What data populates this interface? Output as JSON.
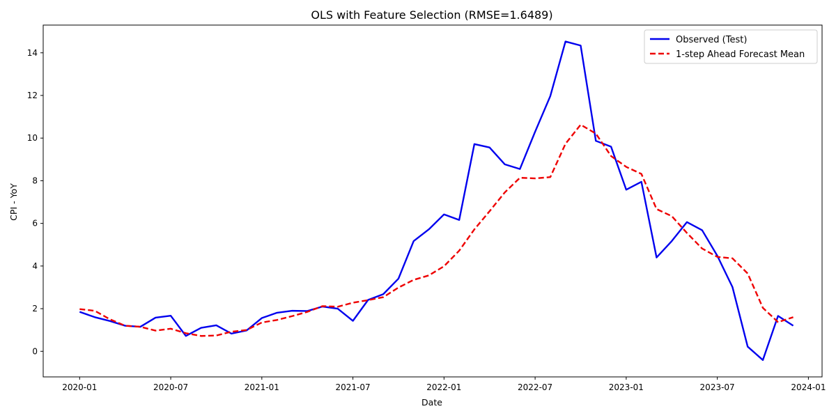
{
  "chart_data": {
    "type": "line",
    "title": "OLS with Feature Selection (RMSE=1.6489)",
    "xlabel": "Date",
    "ylabel": "CPI - YoY",
    "ylim": [
      -1.2,
      15.3
    ],
    "yticks": [
      0,
      2,
      4,
      6,
      8,
      10,
      12,
      14
    ],
    "xlim_months": [
      -2.4,
      48.9
    ],
    "xticks": [
      {
        "label": "2020-01",
        "m": 0
      },
      {
        "label": "2020-07",
        "m": 6
      },
      {
        "label": "2021-01",
        "m": 12
      },
      {
        "label": "2021-07",
        "m": 18
      },
      {
        "label": "2022-01",
        "m": 24
      },
      {
        "label": "2022-07",
        "m": 30
      },
      {
        "label": "2023-01",
        "m": 36
      },
      {
        "label": "2023-07",
        "m": 42
      },
      {
        "label": "2024-01",
        "m": 48
      }
    ],
    "x_start": "2020-01",
    "legend_position": "top-right",
    "grid": false,
    "series": [
      {
        "name": "Observed (Test)",
        "color": "#0000ee",
        "style": "solid",
        "values": [
          1.85,
          1.6,
          1.42,
          1.2,
          1.15,
          1.58,
          1.67,
          0.72,
          1.1,
          1.22,
          0.83,
          0.98,
          1.56,
          1.81,
          1.9,
          1.89,
          2.1,
          2.0,
          1.43,
          2.41,
          2.68,
          3.41,
          5.17,
          5.72,
          6.42,
          6.16,
          9.72,
          9.56,
          8.77,
          8.55,
          10.3,
          11.97,
          14.53,
          14.34,
          9.87,
          9.6,
          7.58,
          7.95,
          4.4,
          5.17,
          6.06,
          5.68,
          4.48,
          3.01,
          0.22,
          -0.41,
          1.66,
          1.2
        ]
      },
      {
        "name": "1-step Ahead Forecast Mean",
        "color": "#ee0000",
        "style": "dashed",
        "values": [
          1.98,
          1.9,
          1.5,
          1.2,
          1.15,
          0.97,
          1.06,
          0.85,
          0.72,
          0.74,
          0.92,
          1.0,
          1.35,
          1.47,
          1.65,
          1.85,
          2.12,
          2.09,
          2.28,
          2.4,
          2.54,
          2.99,
          3.35,
          3.56,
          3.99,
          4.72,
          5.72,
          6.57,
          7.45,
          8.14,
          8.11,
          8.17,
          9.73,
          10.63,
          10.21,
          9.16,
          8.65,
          8.32,
          6.67,
          6.34,
          5.55,
          4.82,
          4.43,
          4.36,
          3.65,
          2.04,
          1.37,
          1.6
        ]
      }
    ]
  }
}
